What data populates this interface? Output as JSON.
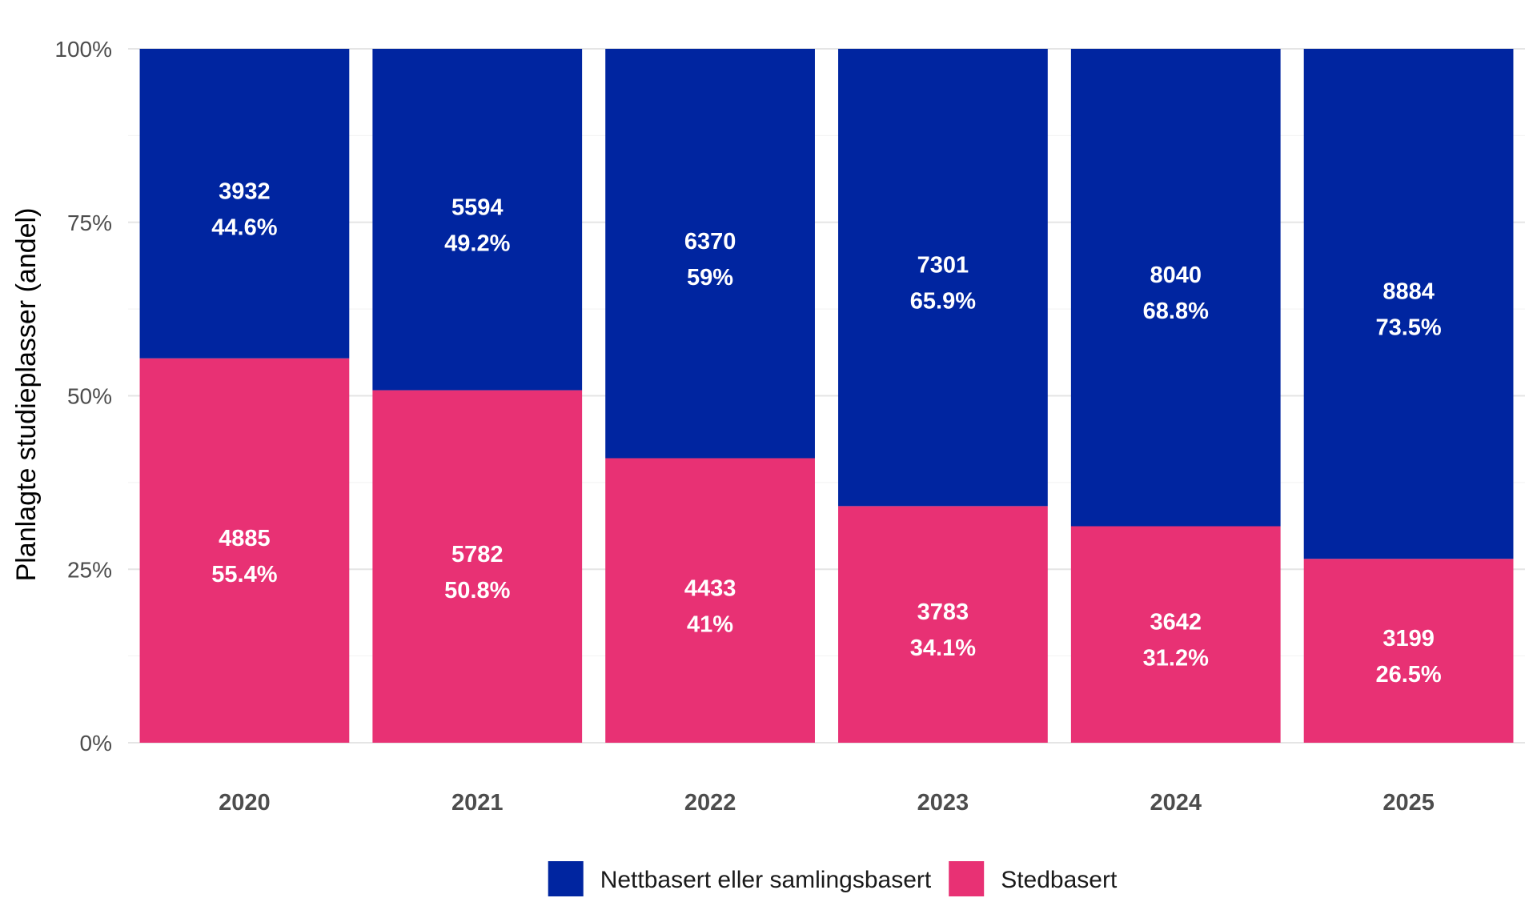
{
  "chart_data": {
    "type": "bar",
    "stacked": true,
    "normalized": true,
    "categories": [
      "2020",
      "2021",
      "2022",
      "2023",
      "2024",
      "2025"
    ],
    "series": [
      {
        "name": "Nettbasert eller samlingsbasert",
        "color": "#0025a0",
        "values": [
          3932,
          5594,
          6370,
          7301,
          8040,
          8884
        ],
        "shares": [
          44.6,
          49.2,
          59,
          65.9,
          68.8,
          73.5
        ],
        "labels": [
          "44.6%",
          "49.2%",
          "59%",
          "65.9%",
          "68.8%",
          "73.5%"
        ]
      },
      {
        "name": "Stedbasert",
        "color": "#e83174",
        "values": [
          4885,
          5782,
          4433,
          3783,
          3642,
          3199
        ],
        "shares": [
          55.4,
          50.8,
          41,
          34.1,
          31.2,
          26.5
        ],
        "labels": [
          "55.4%",
          "50.8%",
          "41%",
          "34.1%",
          "31.2%",
          "26.5%"
        ]
      }
    ],
    "xlabel": "",
    "ylabel": "Planlagte studieplasser (andel)",
    "ylim": [
      0,
      100
    ],
    "yticks": [
      "0%",
      "25%",
      "50%",
      "75%",
      "100%"
    ],
    "ytick_values": [
      0,
      25,
      50,
      75,
      100
    ],
    "grid": true,
    "legend_position": "bottom"
  }
}
